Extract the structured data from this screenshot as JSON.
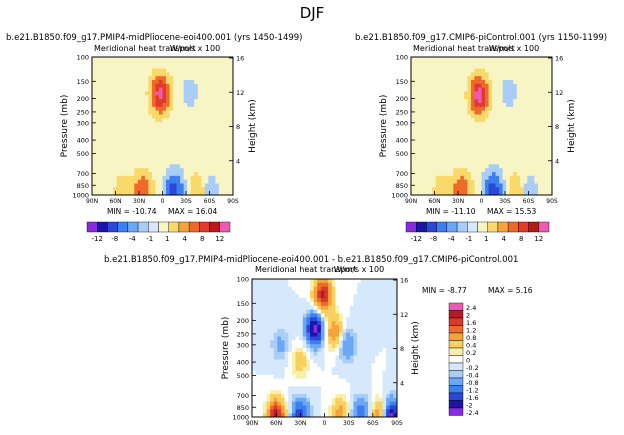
{
  "title": "DJF",
  "colorbar_levels_small": [
    "-12",
    "-8",
    "-4",
    "-1",
    "1",
    "4",
    "8",
    "12"
  ],
  "colorbar_levels_diff": [
    "2.4",
    "2",
    "1.6",
    "1.2",
    "0.8",
    "0.4",
    "0.2",
    "0",
    "-0.2",
    "-0.4",
    "-0.8",
    "-1.2",
    "-1.6",
    "-2",
    "-2.4"
  ],
  "palette_small": [
    "#8a2be2",
    "#1b14a8",
    "#2a47d8",
    "#3c7ff0",
    "#6aa8f5",
    "#a9cdf7",
    "#d6e8fb",
    "#f7f5c4",
    "#f8d96a",
    "#f6a33b",
    "#ee6a2a",
    "#e23a2a",
    "#b81a1a",
    "#ee5ab2"
  ],
  "palette_diff": [
    "#ee5ab2",
    "#b61a22",
    "#d83a30",
    "#ee6a2a",
    "#f6a33b",
    "#f8d060",
    "#f7efaa",
    "#ffffff",
    "#d6e8fb",
    "#a9cdf7",
    "#6aa8f5",
    "#3c7ff0",
    "#2a47d8",
    "#1b14a8",
    "#8a2be2"
  ],
  "chart_data": [
    {
      "type": "heatmap",
      "title": "b.e21.B1850.f09_g17.PMIP4-midPliocene-eoi400.001 (yrs 1450-1499)",
      "subtitle": "Meridional heat transport",
      "units": "W/m/s x 100",
      "xlabel": "",
      "ylabel": "Pressure (mb)",
      "ylabel_right": "Height (km)",
      "x_ticks": [
        "90N",
        "60N",
        "30N",
        "0",
        "30S",
        "60S",
        "90S"
      ],
      "y_ticks": [
        "100",
        "150",
        "200",
        "250",
        "300",
        "400",
        "500",
        "700",
        "850",
        "1000"
      ],
      "y_right_ticks": [
        "16",
        "12",
        "8",
        "4"
      ],
      "min_label": "MIN = -10.74",
      "max_label": "MAX = 16.04",
      "min": -10.74,
      "max": 16.04,
      "features": [
        {
          "lat": 3,
          "p": 185,
          "value": 14
        },
        {
          "lat": -15,
          "p": 925,
          "value": -10
        },
        {
          "lat": 25,
          "p": 930,
          "value": 8
        },
        {
          "lat": 50,
          "p": 950,
          "value": 3
        },
        {
          "lat": -45,
          "p": 950,
          "value": 4
        },
        {
          "lat": -60,
          "p": 960,
          "value": -3
        },
        {
          "lat": -35,
          "p": 180,
          "value": -2
        },
        {
          "lat": 35,
          "p": 190,
          "value": -1
        }
      ]
    },
    {
      "type": "heatmap",
      "title": "b.e21.B1850.f09_g17.CMIP6-piControl.001 (yrs 1150-1199)",
      "subtitle": "Meridional heat transport",
      "units": "W/m/s x 100",
      "xlabel": "",
      "ylabel": "Pressure (mb)",
      "ylabel_right": "Height (km)",
      "x_ticks": [
        "90N",
        "60N",
        "30N",
        "0",
        "30S",
        "60S",
        "90S"
      ],
      "y_ticks": [
        "100",
        "150",
        "200",
        "250",
        "300",
        "400",
        "500",
        "700",
        "850",
        "1000"
      ],
      "y_right_ticks": [
        "16",
        "12",
        "8",
        "4"
      ],
      "min_label": "MIN = -11.10",
      "max_label": "MAX = 15.53",
      "min": -11.1,
      "max": 15.53,
      "features": [
        {
          "lat": 3,
          "p": 190,
          "value": 14
        },
        {
          "lat": -15,
          "p": 925,
          "value": -10.5
        },
        {
          "lat": 25,
          "p": 930,
          "value": 8
        },
        {
          "lat": 50,
          "p": 950,
          "value": 3
        },
        {
          "lat": -45,
          "p": 950,
          "value": 4
        },
        {
          "lat": -60,
          "p": 960,
          "value": -3
        },
        {
          "lat": -35,
          "p": 180,
          "value": -2
        },
        {
          "lat": 35,
          "p": 190,
          "value": -1
        }
      ]
    },
    {
      "type": "heatmap",
      "title": "b.e21.B1850.f09_g17.PMIP4-midPliocene-eoi400.001 - b.e21.B1850.f09_g17.CMIP6-piControl.001",
      "subtitle": "Meridional heat transport",
      "units": "W/m/s x 100",
      "xlabel": "",
      "ylabel": "Pressure (mb)",
      "ylabel_right": "Height (km)",
      "x_ticks": [
        "90N",
        "60N",
        "30N",
        "0",
        "30S",
        "60S",
        "90S"
      ],
      "y_ticks": [
        "100",
        "150",
        "200",
        "250",
        "300",
        "400",
        "500",
        "700",
        "850",
        "1000"
      ],
      "y_right_ticks": [
        "16",
        "12",
        "8",
        "4"
      ],
      "min_label": "MIN = -8.77",
      "max_label": "MAX = 5.16",
      "min": -8.77,
      "max": 5.16,
      "features": [
        {
          "lat": 2,
          "p": 130,
          "value": 2.2
        },
        {
          "lat": 12,
          "p": 230,
          "value": -2.2
        },
        {
          "lat": -12,
          "p": 240,
          "value": 1.2
        },
        {
          "lat": -28,
          "p": 300,
          "value": -0.8
        },
        {
          "lat": 30,
          "p": 400,
          "value": 0.6
        },
        {
          "lat": 55,
          "p": 300,
          "value": -0.5
        },
        {
          "lat": 60,
          "p": 985,
          "value": 2.2
        },
        {
          "lat": 30,
          "p": 975,
          "value": -1.5
        },
        {
          "lat": -20,
          "p": 950,
          "value": 1.0
        },
        {
          "lat": -45,
          "p": 960,
          "value": -1.2
        },
        {
          "lat": -70,
          "p": 980,
          "value": 1.4
        },
        {
          "lat": -82,
          "p": 990,
          "value": -2.4
        }
      ]
    }
  ]
}
